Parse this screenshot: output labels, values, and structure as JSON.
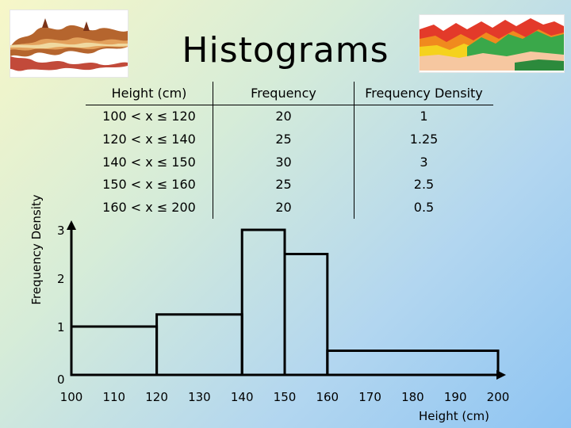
{
  "slide": {
    "title": "Histograms"
  },
  "table": {
    "headers": [
      "Height (cm)",
      "Frequency",
      "Frequency Density"
    ],
    "rows": [
      [
        "100 < x ≤ 120",
        "20",
        "1"
      ],
      [
        "120 < x ≤ 140",
        "25",
        "1.25"
      ],
      [
        "140 < x ≤ 150",
        "30",
        "3"
      ],
      [
        "150 < x ≤ 160",
        "25",
        "2.5"
      ],
      [
        "160 < x ≤ 200",
        "20",
        "0.5"
      ]
    ]
  },
  "chart_data": {
    "type": "bar",
    "title": "",
    "xlabel": "Height (cm)",
    "ylabel": "Frequency Density",
    "xlim": [
      100,
      200
    ],
    "ylim": [
      0,
      3
    ],
    "xticks": [
      "100",
      "110",
      "120",
      "130",
      "140",
      "150",
      "160",
      "170",
      "180",
      "190",
      "200"
    ],
    "yticks": [
      "0",
      "1",
      "2",
      "3"
    ],
    "bins": [
      {
        "from": 100,
        "to": 120,
        "value": 1
      },
      {
        "from": 120,
        "to": 140,
        "value": 1.25
      },
      {
        "from": 140,
        "to": 150,
        "value": 3
      },
      {
        "from": 150,
        "to": 160,
        "value": 2.5
      },
      {
        "from": 160,
        "to": 200,
        "value": 0.5
      }
    ],
    "grid": false,
    "legend": "none"
  }
}
